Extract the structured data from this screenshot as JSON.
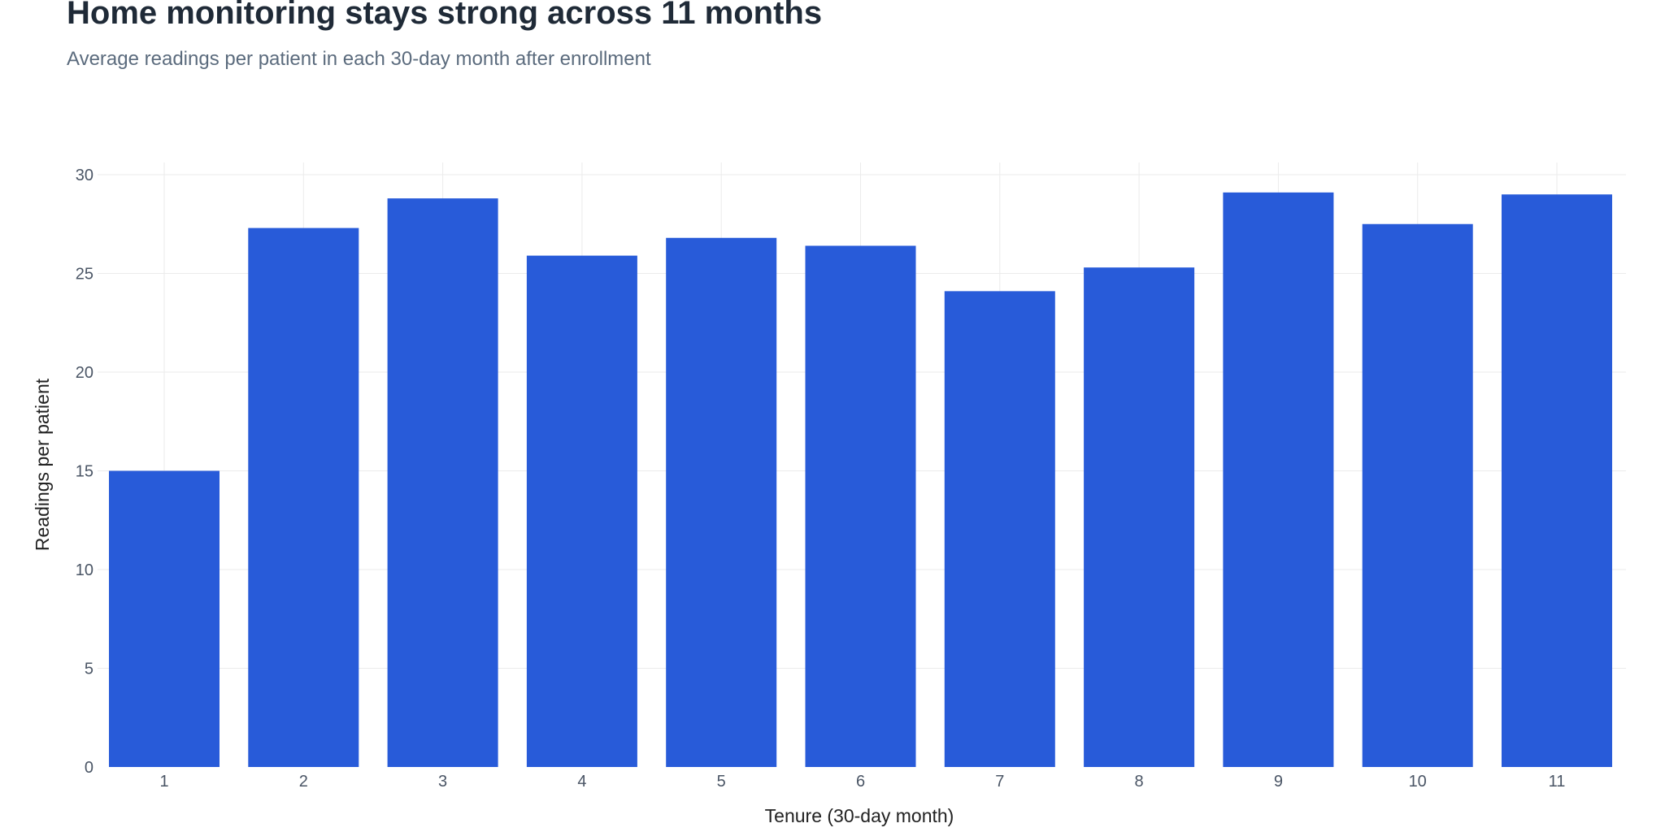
{
  "title": "Home monitoring stays strong across 11 months",
  "subtitle": "Average readings per patient in each 30-day month after enrollment",
  "colors": {
    "bar": "#285bd9",
    "grid": "#ebebeb",
    "title": "#1f2a37",
    "subtitle": "#5b6b7d"
  },
  "chart_data": {
    "type": "bar",
    "title": "Home monitoring stays strong across 11 months",
    "subtitle": "Average readings per patient in each 30-day month after enrollment",
    "xlabel": "Tenure (30-day month)",
    "ylabel": "Readings per patient",
    "categories": [
      "1",
      "2",
      "3",
      "4",
      "5",
      "6",
      "7",
      "8",
      "9",
      "10",
      "11"
    ],
    "values": [
      15.0,
      27.3,
      28.8,
      25.9,
      26.8,
      26.4,
      24.1,
      25.3,
      29.1,
      27.5,
      29.0
    ],
    "ylim": [
      0,
      30
    ],
    "yticks": [
      0,
      5,
      10,
      15,
      20,
      25,
      30
    ],
    "grid": true,
    "legend": "none"
  }
}
